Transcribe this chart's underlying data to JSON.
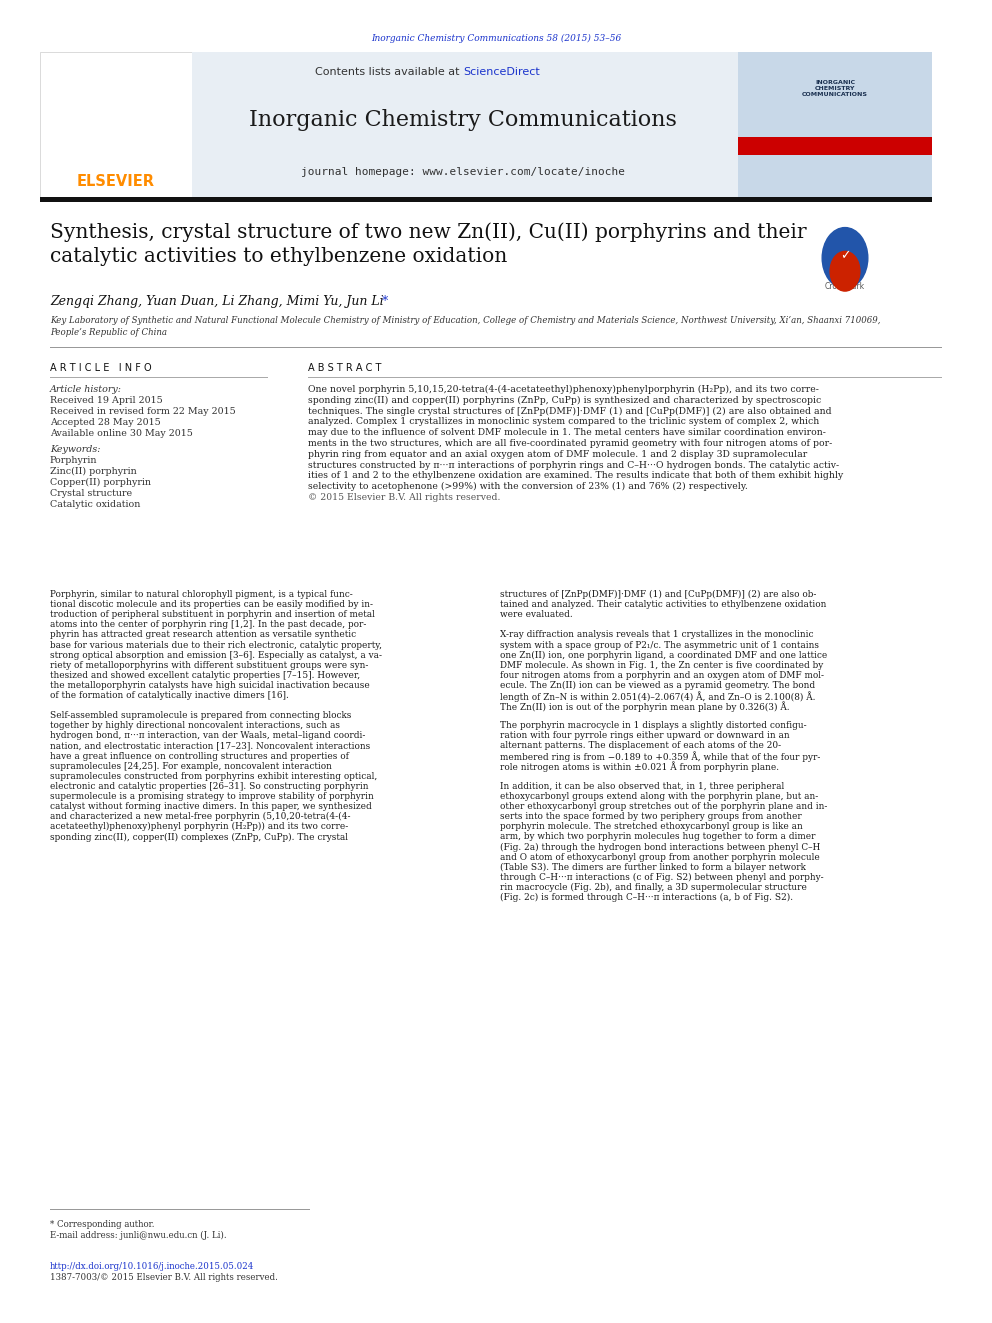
{
  "page_width": 9.92,
  "page_height": 13.23,
  "background_color": "#ffffff",
  "top_citation": "Inorganic Chemistry Communications 58 (2015) 53–56",
  "top_citation_color": "#1a33cc",
  "header_bg": "#e8eef4",
  "contents_text": "Contents lists available at ",
  "sciencedirect_text": "ScienceDirect",
  "sciencedirect_color": "#1a33cc",
  "journal_title": "Inorganic Chemistry Communications",
  "journal_homepage": "journal homepage: www.elsevier.com/locate/inoche",
  "elsevier_color": "#ff8c00",
  "article_title": "Synthesis, crystal structure of two new Zn(II), Cu(II) porphyrins and their\ncatalytic activities to ethylbenzene oxidation",
  "authors": "Zengqi Zhang, Yuan Duan, Li Zhang, Mimi Yu, Jun Li",
  "authors_star": " *",
  "affiliation": "Key Laboratory of Synthetic and Natural Functional Molecule Chemistry of Ministry of Education, College of Chemistry and Materials Science, Northwest University, Xi’an, Shaanxi 710069,\nPeople’s Republic of China",
  "article_info_header": "A R T I C L E   I N F O",
  "abstract_header": "A B S T R A C T",
  "article_history_label": "Article history:",
  "received_1": "Received 19 April 2015",
  "received_2": "Received in revised form 22 May 2015",
  "accepted": "Accepted 28 May 2015",
  "available": "Available online 30 May 2015",
  "keywords_label": "Keywords:",
  "keyword_1": "Porphyrin",
  "keyword_2": "Zinc(II) porphyrin",
  "keyword_3": "Copper(II) porphyrin",
  "keyword_4": "Crystal structure",
  "keyword_5": "Catalytic oxidation",
  "abstract_text": "One novel porphyrin 5,10,15,20-tetra(4-(4-acetateethyl)phenoxy)phenylporphyrin (H₂Pp), and its two corre-\nsponding zinc(II) and copper(II) porphyrins (ZnPp, CuPp) is synthesized and characterized by spectroscopic\ntechniques. The single crystal structures of [ZnPp(DMF)]·DMF (1) and [CuPp(DMF)] (2) are also obtained and\nanalyzed. Complex 1 crystallizes in monoclinic system compared to the triclinic system of complex 2, which\nmay due to the influence of solvent DMF molecule in 1. The metal centers have similar coordination environ-\nments in the two structures, which are all five-coordinated pyramid geometry with four nitrogen atoms of por-\nphyrin ring from equator and an axial oxygen atom of DMF molecule. 1 and 2 display 3D supramolecular\nstructures constructed by π···π interactions of porphyrin rings and C–H···O hydrogen bonds. The catalytic activ-\nities of 1 and 2 to the ethylbenzene oxidation are examined. The results indicate that both of them exhibit highly\nselectivity to acetophenone (>99%) with the conversion of 23% (1) and 76% (2) respectively.\n© 2015 Elsevier B.V. All rights reserved.",
  "main_text_col1": "Porphyrin, similar to natural chlorophyll pigment, is a typical func-\ntional discotic molecule and its properties can be easily modified by in-\ntroduction of peripheral substituent in porphyrin and insertion of metal\natoms into the center of porphyrin ring [1,2]. In the past decade, por-\nphyrin has attracted great research attention as versatile synthetic\nbase for various materials due to their rich electronic, catalytic property,\nstrong optical absorption and emission [3–6]. Especially as catalyst, a va-\nriety of metalloporphyrins with different substituent groups were syn-\nthesized and showed excellent catalytic properties [7–15]. However,\nthe metalloporphyrin catalysts have high suicidal inactivation because\nof the formation of catalytically inactive dimers [16].\n\nSelf-assembled supramolecule is prepared from connecting blocks\ntogether by highly directional noncovalent interactions, such as\nhydrogen bond, π···π interaction, van der Waals, metal–ligand coordi-\nnation, and electrostatic interaction [17–23]. Noncovalent interactions\nhave a great influence on controlling structures and properties of\nsupramolecules [24,25]. For example, noncovalent interaction\nsupramolecules constructed from porphyrins exhibit interesting optical,\nelectronic and catalytic properties [26–31]. So constructing porphyrin\nsupermolecule is a promising strategy to improve stability of porphyrin\ncatalyst without forming inactive dimers. In this paper, we synthesized\nand characterized a new metal-free porphyrin (5,10,20-tetra(4-(4-\nacetateethyl)phenoxy)phenyl porphyrin (H₂Pp)) and its two corre-\nsponding zinc(II), copper(II) complexes (ZnPp, CuPp). The crystal",
  "main_text_col2": "structures of [ZnPp(DMF)]·DMF (1) and [CuPp(DMF)] (2) are also ob-\ntained and analyzed. Their catalytic activities to ethylbenzene oxidation\nwere evaluated.\n\nX-ray diffraction analysis reveals that 1 crystallizes in the monoclinic\nsystem with a space group of P2₁/c. The asymmetric unit of 1 contains\none Zn(II) ion, one porphyrin ligand, a coordinated DMF and one lattice\nDMF molecule. As shown in Fig. 1, the Zn center is five coordinated by\nfour nitrogen atoms from a porphyrin and an oxygen atom of DMF mol-\necule. The Zn(II) ion can be viewed as a pyramid geometry. The bond\nlength of Zn–N is within 2.051(4)–2.067(4) Å, and Zn–O is 2.100(8) Å.\nThe Zn(II) ion is out of the porphyrin mean plane by 0.326(3) Å.\n\nThe porphyrin macrocycle in 1 displays a slightly distorted configu-\nration with four pyrrole rings either upward or downward in an\nalternant patterns. The displacement of each atoms of the 20-\nmembered ring is from −0.189 to +0.359 Å, while that of the four pyr-\nrole nitrogen atoms is within ±0.021 Å from porphyrin plane.\n\nIn addition, it can be also observed that, in 1, three peripheral\nethoxycarbonyl groups extend along with the porphyrin plane, but an-\nother ethoxycarbonyl group stretches out of the porphyrin plane and in-\nserts into the space formed by two periphery groups from another\nporphyrin molecule. The stretched ethoxycarbonyl group is like an\narm, by which two porphyrin molecules hug together to form a dimer\n(Fig. 2a) through the hydrogen bond interactions between phenyl C–H\nand O atom of ethoxycarbonyl group from another porphyrin molecule\n(Table S3). The dimers are further linked to form a bilayer network\nthrough C–H···π interactions (c of Fig. S2) between phenyl and porphy-\nrin macrocycle (Fig. 2b), and finally, a 3D supermolecular structure\n(Fig. 2c) is formed through C–H···π interactions (a, b of Fig. S2).",
  "footnote_star": "* Corresponding author.",
  "footnote_email": "E-mail address: junli@nwu.edu.cn (J. Li).",
  "footnote_doi": "http://dx.doi.org/10.1016/j.inoche.2015.05.024",
  "footnote_issn": "1387-7003/© 2015 Elsevier B.V. All rights reserved."
}
